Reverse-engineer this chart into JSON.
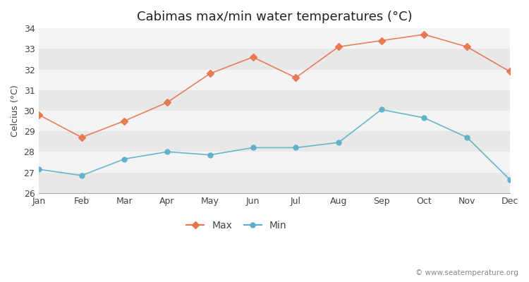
{
  "title": "Cabimas max/min water temperatures (°C)",
  "ylabel": "Celcius (°C)",
  "months": [
    "Jan",
    "Feb",
    "Mar",
    "Apr",
    "May",
    "Jun",
    "Jul",
    "Aug",
    "Sep",
    "Oct",
    "Nov",
    "Dec"
  ],
  "max_temps": [
    29.8,
    28.7,
    29.5,
    30.4,
    31.8,
    32.6,
    31.6,
    33.1,
    33.4,
    33.7,
    33.1,
    31.9
  ],
  "min_temps": [
    27.15,
    26.85,
    27.65,
    28.0,
    27.85,
    28.2,
    28.2,
    28.45,
    30.05,
    29.65,
    28.7,
    26.65
  ],
  "max_color": "#e8724a",
  "min_color": "#5aafc8",
  "bg_color": "#ffffff",
  "band_colors": [
    "#e8e8e8",
    "#f4f4f4"
  ],
  "ylim": [
    26,
    34
  ],
  "yticks": [
    26,
    27,
    28,
    29,
    30,
    31,
    32,
    33,
    34
  ],
  "legend_labels": [
    "Max",
    "Min"
  ],
  "watermark": "© www.seatemperature.org",
  "title_fontsize": 13,
  "label_fontsize": 9,
  "tick_fontsize": 9,
  "legend_fontsize": 10
}
